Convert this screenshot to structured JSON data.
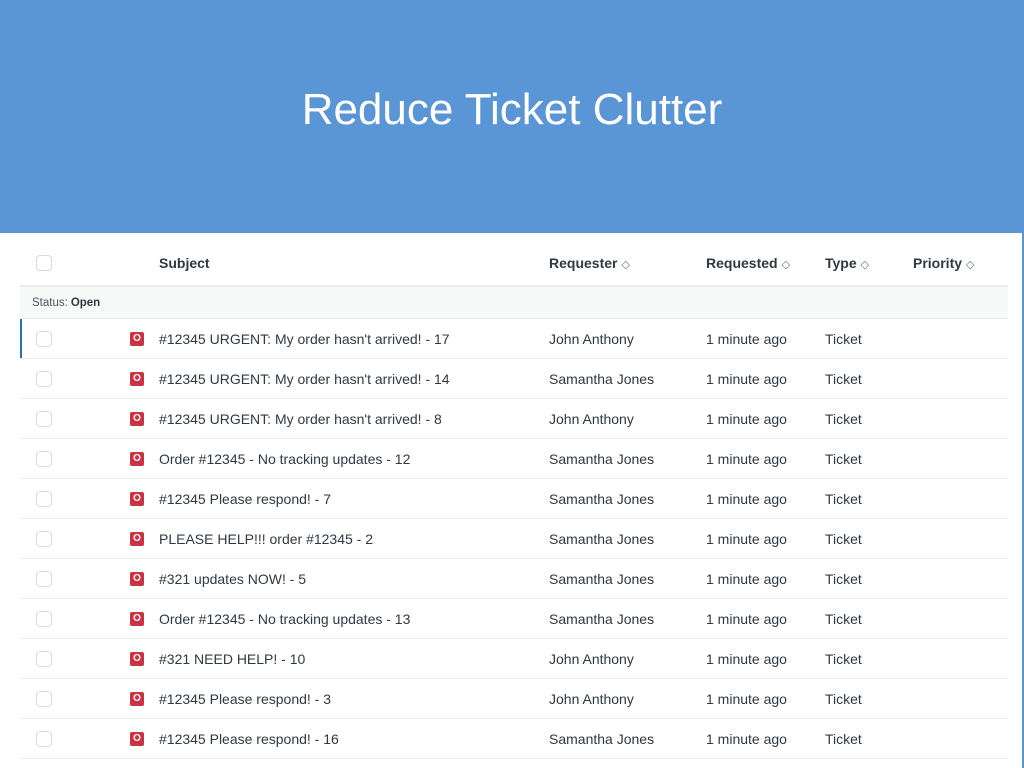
{
  "banner": {
    "title": "Reduce Ticket Clutter"
  },
  "table": {
    "columns": {
      "subject": "Subject",
      "requester": "Requester",
      "requested": "Requested",
      "type": "Type",
      "priority": "Priority"
    },
    "group": {
      "label": "Status:",
      "value": "Open"
    },
    "status_icon_letter": "O",
    "status_color": "#cc3340",
    "rows": [
      {
        "subject": "#12345 URGENT: My order hasn't arrived! - 17",
        "requester": "John Anthony",
        "requested": "1 minute ago",
        "type": "Ticket",
        "priority": ""
      },
      {
        "subject": "#12345 URGENT: My order hasn't arrived! - 14",
        "requester": "Samantha Jones",
        "requested": "1 minute ago",
        "type": "Ticket",
        "priority": ""
      },
      {
        "subject": "#12345 URGENT: My order hasn't arrived! - 8",
        "requester": "John Anthony",
        "requested": "1 minute ago",
        "type": "Ticket",
        "priority": ""
      },
      {
        "subject": "Order #12345 - No tracking updates - 12",
        "requester": "Samantha Jones",
        "requested": "1 minute ago",
        "type": "Ticket",
        "priority": ""
      },
      {
        "subject": "#12345 Please respond! - 7",
        "requester": "Samantha Jones",
        "requested": "1 minute ago",
        "type": "Ticket",
        "priority": ""
      },
      {
        "subject": "PLEASE HELP!!! order #12345 - 2",
        "requester": "Samantha Jones",
        "requested": "1 minute ago",
        "type": "Ticket",
        "priority": ""
      },
      {
        "subject": "#321 updates NOW! - 5",
        "requester": "Samantha Jones",
        "requested": "1 minute ago",
        "type": "Ticket",
        "priority": ""
      },
      {
        "subject": "Order #12345 - No tracking updates - 13",
        "requester": "Samantha Jones",
        "requested": "1 minute ago",
        "type": "Ticket",
        "priority": ""
      },
      {
        "subject": "#321 NEED HELP! - 10",
        "requester": "John Anthony",
        "requested": "1 minute ago",
        "type": "Ticket",
        "priority": ""
      },
      {
        "subject": "#12345 Please respond! - 3",
        "requester": "John Anthony",
        "requested": "1 minute ago",
        "type": "Ticket",
        "priority": ""
      },
      {
        "subject": "#12345 Please respond! - 16",
        "requester": "Samantha Jones",
        "requested": "1 minute ago",
        "type": "Ticket",
        "priority": ""
      }
    ]
  }
}
